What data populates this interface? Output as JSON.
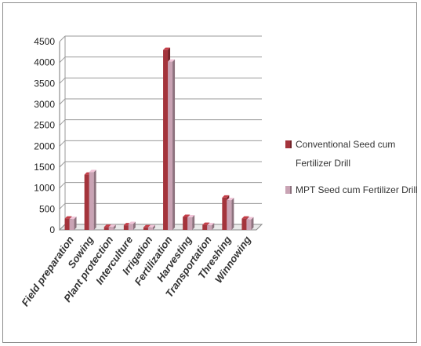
{
  "chart_data": {
    "type": "bar",
    "title": "",
    "xlabel": "",
    "ylabel": "",
    "ylim": [
      0,
      4500
    ],
    "yticks": [
      0,
      500,
      1000,
      1500,
      2000,
      2500,
      3000,
      3500,
      4000,
      4500
    ],
    "grid": true,
    "legend_position": "right",
    "categories": [
      "Field preparation",
      "Sowing",
      "Plant protection",
      "Interculture",
      "Irrigation",
      "Fertilization",
      "Harvesting",
      "Transportation",
      "Threshing",
      "Winnowing"
    ],
    "series": [
      {
        "name": "Conventional Seed cum Fertilizer Drill",
        "color": "#a4343c",
        "values": [
          270,
          1320,
          70,
          110,
          60,
          4300,
          310,
          120,
          770,
          270
        ]
      },
      {
        "name": "MPT Seed cum Fertilizer Drill",
        "color": "#c9a3b4",
        "values": [
          260,
          1380,
          70,
          140,
          60,
          4020,
          300,
          110,
          710,
          250
        ]
      }
    ],
    "legend": {
      "entries": [
        {
          "lines": [
            "Conventional Seed cum",
            "Fertilizer Drill"
          ]
        },
        {
          "lines": [
            "MPT Seed cum Fertilizer Drill"
          ]
        }
      ]
    }
  }
}
